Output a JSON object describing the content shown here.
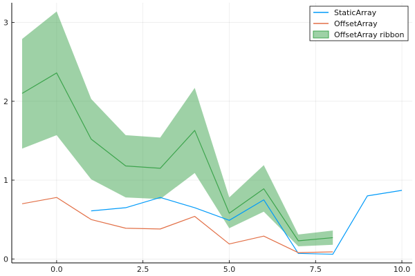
{
  "chart_data": {
    "type": "line",
    "title": "",
    "xlabel": "",
    "ylabel": "",
    "xlim": [
      -1.3,
      10.3
    ],
    "ylim": [
      -0.05,
      3.25
    ],
    "grid": true,
    "legend_position": "top-right",
    "x_ticks": [
      {
        "value": 0,
        "label": "0.0"
      },
      {
        "value": 2.5,
        "label": "2.5"
      },
      {
        "value": 5,
        "label": "5.0"
      },
      {
        "value": 7.5,
        "label": "7.5"
      },
      {
        "value": 10,
        "label": "10.0"
      }
    ],
    "y_ticks": [
      {
        "value": 0,
        "label": "0"
      },
      {
        "value": 1,
        "label": "1"
      },
      {
        "value": 2,
        "label": "2"
      },
      {
        "value": 3,
        "label": "3"
      }
    ],
    "series": [
      {
        "name": "StaticArray",
        "kind": "line",
        "color": "#009af9",
        "x": [
          1,
          2,
          3,
          4,
          5,
          6,
          7,
          8,
          9,
          10
        ],
        "y": [
          0.61,
          0.65,
          0.78,
          0.65,
          0.49,
          0.75,
          0.07,
          0.06,
          0.8,
          0.87
        ]
      },
      {
        "name": "OffsetArray",
        "kind": "line",
        "color": "#e26f46",
        "x": [
          -1,
          0,
          1,
          2,
          3,
          4,
          5,
          6,
          7,
          8
        ],
        "y": [
          0.7,
          0.78,
          0.5,
          0.39,
          0.38,
          0.54,
          0.19,
          0.29,
          0.08,
          0.09
        ]
      },
      {
        "name": "OffsetArray ribbon",
        "kind": "ribbon",
        "color": "#3da44d",
        "fill_opacity": 0.5,
        "x": [
          -1,
          0,
          1,
          2,
          3,
          4,
          5,
          6,
          7,
          8
        ],
        "y": [
          2.1,
          2.36,
          1.52,
          1.18,
          1.15,
          1.63,
          0.58,
          0.89,
          0.23,
          0.27
        ],
        "lower": [
          1.4,
          1.57,
          1.01,
          0.78,
          0.76,
          1.09,
          0.39,
          0.6,
          0.16,
          0.18
        ],
        "upper": [
          2.79,
          3.14,
          2.03,
          1.57,
          1.54,
          2.17,
          0.78,
          1.19,
          0.31,
          0.36
        ]
      }
    ]
  }
}
